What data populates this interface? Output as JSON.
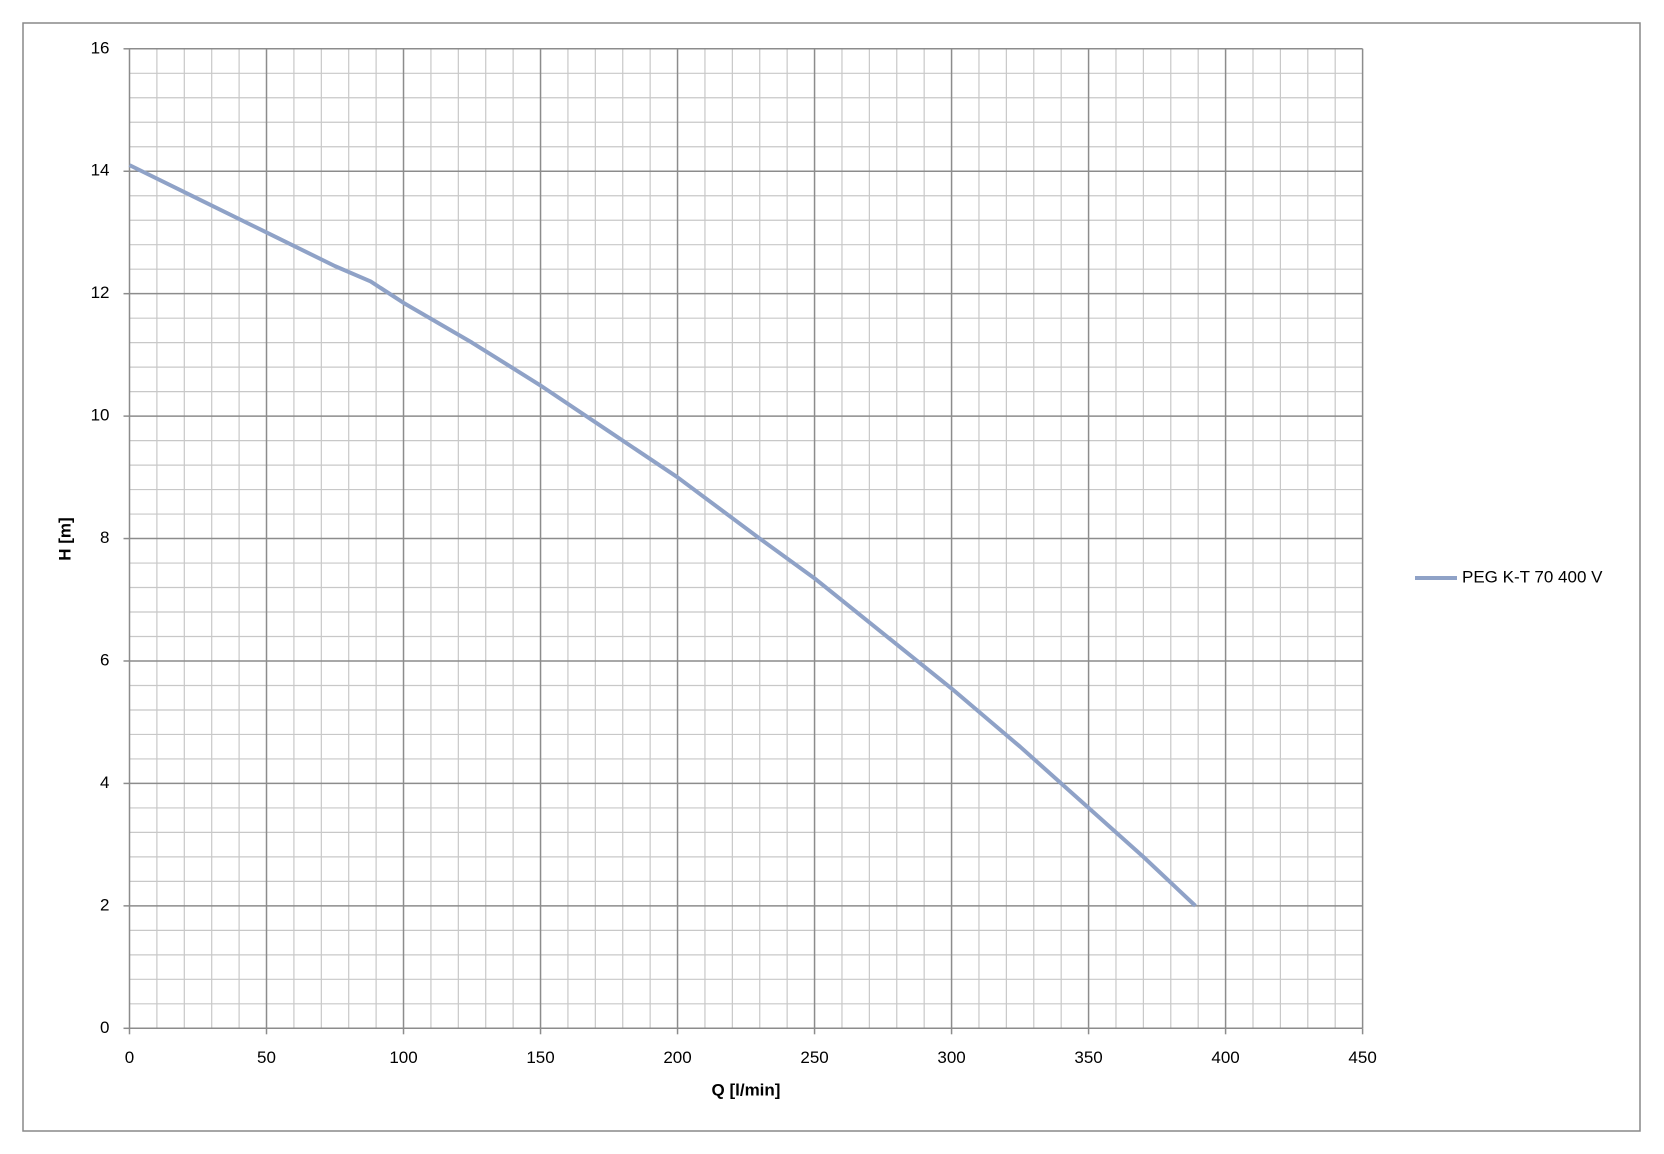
{
  "chart_data": {
    "type": "line",
    "xlabel": "Q [l/min]",
    "ylabel": "H [m]",
    "x": [
      0,
      25,
      50,
      75,
      88,
      100,
      125,
      150,
      175,
      200,
      230,
      250,
      275,
      300,
      325,
      350,
      370,
      389
    ],
    "series": [
      {
        "name": "PEG K-T 70 400 V",
        "color": "#8fa2c7",
        "values": [
          14.1,
          13.55,
          13.0,
          12.45,
          12.2,
          11.85,
          11.2,
          10.5,
          9.75,
          9.0,
          8.0,
          7.35,
          6.45,
          5.55,
          4.6,
          3.6,
          2.8,
          2.0
        ]
      }
    ],
    "xlim": [
      0,
      450
    ],
    "xticks": [
      0,
      50,
      100,
      150,
      200,
      250,
      300,
      350,
      400,
      450
    ],
    "ylim": [
      0,
      16
    ],
    "yticks": [
      0,
      2,
      4,
      6,
      8,
      10,
      12,
      14,
      16
    ],
    "grid": true,
    "minor_divisions": 5,
    "legend": "right"
  }
}
